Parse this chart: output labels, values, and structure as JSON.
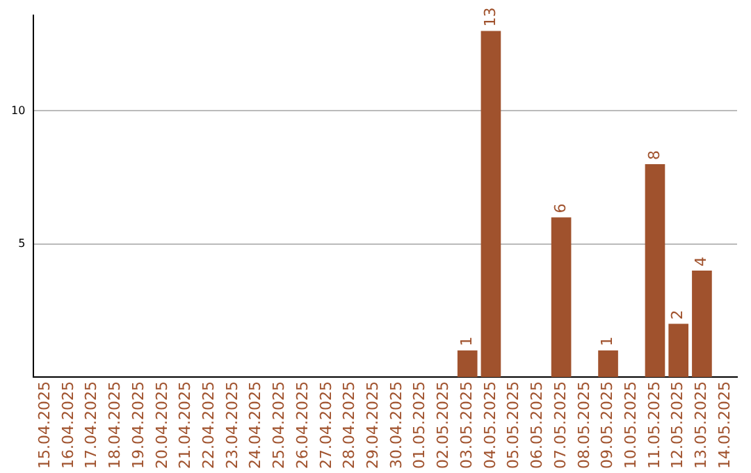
{
  "chart_data": {
    "type": "bar",
    "categories": [
      "15.04.2025",
      "16.04.2025",
      "17.04.2025",
      "18.04.2025",
      "19.04.2025",
      "20.04.2025",
      "21.04.2025",
      "22.04.2025",
      "23.04.2025",
      "24.04.2025",
      "25.04.2025",
      "26.04.2025",
      "27.04.2025",
      "28.04.2025",
      "29.04.2025",
      "30.04.2025",
      "01.05.2025",
      "02.05.2025",
      "03.05.2025",
      "04.05.2025",
      "05.05.2025",
      "06.05.2025",
      "07.05.2025",
      "08.05.2025",
      "09.05.2025",
      "10.05.2025",
      "11.05.2025",
      "12.05.2025",
      "13.05.2025",
      "14.05.2025"
    ],
    "values": [
      0,
      0,
      0,
      0,
      0,
      0,
      0,
      0,
      0,
      0,
      0,
      0,
      0,
      0,
      0,
      0,
      0,
      0,
      1,
      13,
      0,
      0,
      6,
      0,
      1,
      0,
      8,
      2,
      4,
      0
    ],
    "value_labels": [
      null,
      null,
      null,
      null,
      null,
      null,
      null,
      null,
      null,
      null,
      null,
      null,
      null,
      null,
      null,
      null,
      null,
      null,
      "1",
      "13",
      null,
      null,
      "6",
      null,
      "1",
      null,
      "8",
      "2",
      "4",
      null
    ],
    "color": "#a0522d",
    "ylim": [
      0,
      13.6
    ],
    "yticks": [
      5,
      10
    ],
    "grid": "y",
    "legend": false
  }
}
